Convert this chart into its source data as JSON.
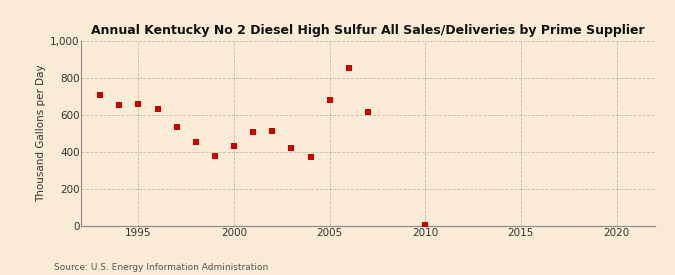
{
  "title": "Annual Kentucky No 2 Diesel High Sulfur All Sales/Deliveries by Prime Supplier",
  "ylabel": "Thousand Gallons per Day",
  "source": "Source: U.S. Energy Information Administration",
  "background_color": "#faebd7",
  "plot_bg_color": "#faebd7",
  "scatter_color": "#cc0000",
  "grid_color": "#b0b0b0",
  "axis_color": "#555555",
  "xlim": [
    1992,
    2022
  ],
  "ylim": [
    0,
    1000
  ],
  "xticks": [
    1995,
    2000,
    2005,
    2010,
    2015,
    2020
  ],
  "yticks": [
    0,
    200,
    400,
    600,
    800,
    1000
  ],
  "data_x": [
    1993,
    1994,
    1995,
    1996,
    1997,
    1998,
    1999,
    2000,
    2001,
    2002,
    2003,
    2004,
    2005,
    2006,
    2007,
    2010
  ],
  "data_y": [
    710,
    655,
    660,
    630,
    535,
    455,
    375,
    430,
    510,
    515,
    420,
    370,
    680,
    855,
    615,
    5
  ]
}
